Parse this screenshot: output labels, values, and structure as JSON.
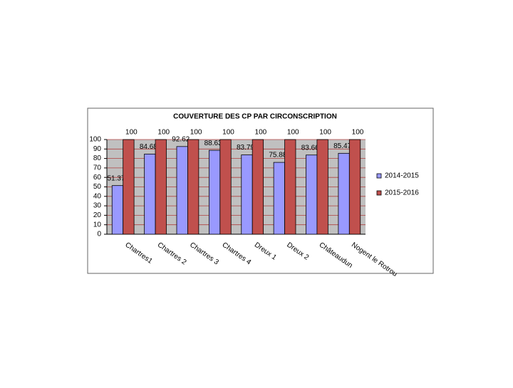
{
  "chart_data": {
    "type": "bar",
    "title": "COUVERTURE DES CP PAR CIRCONSCRIPTION",
    "categories": [
      "Chartres1",
      "Chartres 2",
      "Chartres 3",
      "Chartres 4",
      "Dreux 1",
      "Dreux 2",
      "Châteaudun",
      "Nogent le Rotrou"
    ],
    "series": [
      {
        "name": "2014-2015",
        "color": "#9999ff",
        "values": [
          51.37,
          84.68,
          92.62,
          88.63,
          83.79,
          75.88,
          83.66,
          85.47
        ]
      },
      {
        "name": "2015-2016",
        "color": "#c0504d",
        "values": [
          100,
          100,
          100,
          100,
          100,
          100,
          100,
          100
        ]
      }
    ],
    "ylim": [
      0,
      100
    ],
    "yticks": [
      0,
      10,
      20,
      30,
      40,
      50,
      60,
      70,
      80,
      90,
      100
    ],
    "grid": true,
    "legend": "right"
  }
}
